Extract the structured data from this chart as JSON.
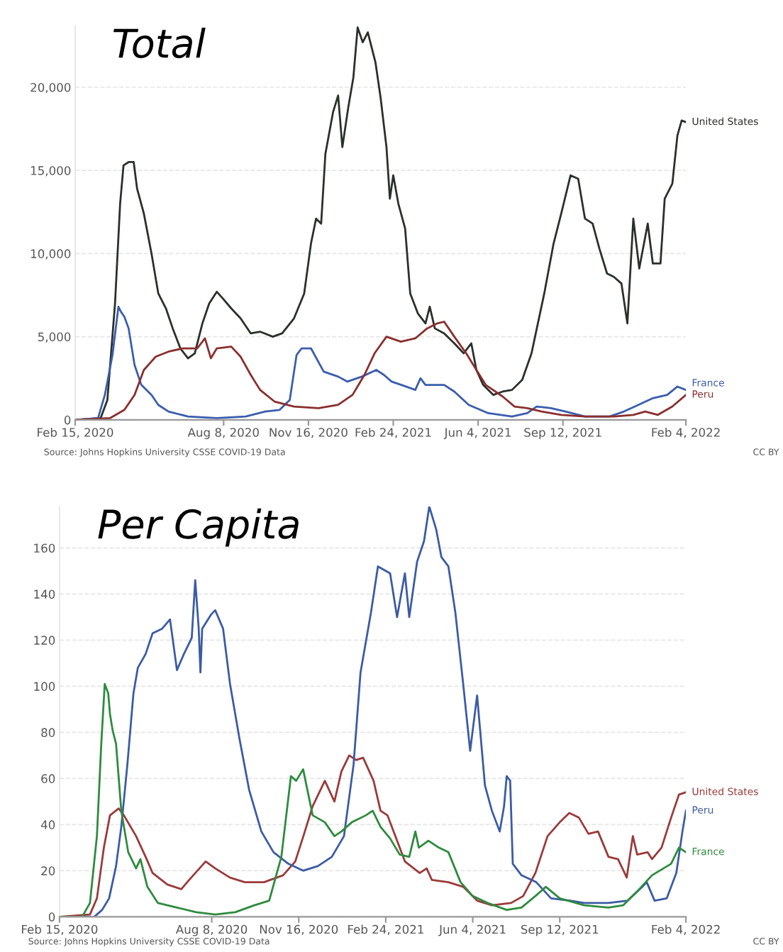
{
  "chart_data": [
    {
      "type": "line",
      "title": "Total",
      "grid": "y",
      "xlim": [
        "2020-02-15",
        "2022-02-04"
      ],
      "xticks": [
        {
          "value": "2020-02-15",
          "label": "Feb 15, 2020"
        },
        {
          "value": "2020-08-08",
          "label": "Aug 8, 2020"
        },
        {
          "value": "2020-11-16",
          "label": "Nov 16, 2020"
        },
        {
          "value": "2021-02-24",
          "label": "Feb 24, 2021"
        },
        {
          "value": "2021-06-04",
          "label": "Jun 4, 2021"
        },
        {
          "value": "2021-09-12",
          "label": "Sep 12, 2021"
        },
        {
          "value": "2022-02-04",
          "label": "Feb 4, 2022"
        }
      ],
      "ylim": [
        0,
        23700
      ],
      "yticks": [
        0,
        {
          "value": 5000,
          "label": "5,000"
        },
        {
          "value": 10000,
          "label": "10,000"
        },
        {
          "value": 15000,
          "label": "15,000"
        },
        {
          "value": 20000,
          "label": "20,000"
        }
      ],
      "annotations": [
        "Source: Johns Hopkins University CSSE COVID-19 Data",
        "CC BY"
      ],
      "series": [
        {
          "name": "United States",
          "color": "#2a302a",
          "x": [
            "2020-02-15",
            "2020-03-16",
            "2020-03-24",
            "2020-04-02",
            "2020-04-08",
            "2020-04-12",
            "2020-04-18",
            "2020-04-24",
            "2020-04-28",
            "2020-05-06",
            "2020-05-15",
            "2020-05-23",
            "2020-06-01",
            "2020-06-09",
            "2020-06-18",
            "2020-06-27",
            "2020-07-05",
            "2020-07-14",
            "2020-07-22",
            "2020-07-31",
            "2020-08-07",
            "2020-08-17",
            "2020-08-28",
            "2020-09-09",
            "2020-09-20",
            "2020-10-05",
            "2020-10-16",
            "2020-10-30",
            "2020-11-11",
            "2020-11-19",
            "2020-11-25",
            "2020-12-01",
            "2020-12-06",
            "2020-12-15",
            "2020-12-21",
            "2020-12-26",
            "2021-01-02",
            "2021-01-08",
            "2021-01-13",
            "2021-01-19",
            "2021-01-25",
            "2021-02-03",
            "2021-02-09",
            "2021-02-16",
            "2021-02-20",
            "2021-02-24",
            "2021-03-02",
            "2021-03-10",
            "2021-03-16",
            "2021-03-25",
            "2021-04-03",
            "2021-04-08",
            "2021-04-14",
            "2021-04-25",
            "2021-05-07",
            "2021-05-18",
            "2021-05-27",
            "2021-06-02",
            "2021-06-10",
            "2021-06-22",
            "2021-07-03",
            "2021-07-14",
            "2021-07-26",
            "2021-08-06",
            "2021-08-21",
            "2021-09-01",
            "2021-09-10",
            "2021-09-21",
            "2021-09-30",
            "2021-10-08",
            "2021-10-17",
            "2021-10-25",
            "2021-11-03",
            "2021-11-11",
            "2021-11-20",
            "2021-11-27",
            "2021-12-04",
            "2021-12-11",
            "2021-12-21",
            "2021-12-27",
            "2022-01-05",
            "2022-01-10",
            "2022-01-19",
            "2022-01-25",
            "2022-01-30",
            "2022-02-04"
          ],
          "values": [
            0,
            100,
            1200,
            7000,
            13000,
            15300,
            15500,
            15500,
            13900,
            12400,
            10000,
            7600,
            6700,
            5500,
            4300,
            3700,
            4000,
            5800,
            7000,
            7700,
            7300,
            6700,
            6100,
            5200,
            5300,
            5000,
            5200,
            6100,
            7600,
            10600,
            12100,
            11800,
            16000,
            18500,
            19500,
            16400,
            18800,
            20600,
            23600,
            22700,
            23300,
            21500,
            19400,
            16400,
            13300,
            14700,
            13000,
            11500,
            7600,
            6400,
            5800,
            6800,
            5500,
            5200,
            4600,
            4000,
            4600,
            3000,
            2100,
            1500,
            1700,
            1800,
            2400,
            4000,
            7600,
            10600,
            12400,
            14700,
            14500,
            12100,
            11800,
            10300,
            8800,
            8600,
            8200,
            5800,
            12100,
            9100,
            11800,
            9400,
            9400,
            13300,
            14200,
            17100,
            18000,
            17900
          ]
        },
        {
          "name": "France",
          "color": "#3a5dae",
          "x": [
            "2020-02-15",
            "2020-03-13",
            "2020-03-21",
            "2020-03-30",
            "2020-04-06",
            "2020-04-09",
            "2020-04-13",
            "2020-04-18",
            "2020-04-25",
            "2020-05-03",
            "2020-05-15",
            "2020-05-23",
            "2020-06-04",
            "2020-06-27",
            "2020-07-31",
            "2020-09-03",
            "2020-09-26",
            "2020-10-13",
            "2020-10-25",
            "2020-11-02",
            "2020-11-08",
            "2020-11-19",
            "2020-12-04",
            "2020-12-21",
            "2021-01-01",
            "2021-01-18",
            "2021-02-04",
            "2021-02-13",
            "2021-02-22",
            "2021-03-11",
            "2021-03-22",
            "2021-03-28",
            "2021-04-03",
            "2021-04-14",
            "2021-04-25",
            "2021-05-07",
            "2021-05-24",
            "2021-06-16",
            "2021-07-14",
            "2021-08-01",
            "2021-08-12",
            "2021-08-29",
            "2021-09-15",
            "2021-10-08",
            "2021-11-06",
            "2021-11-23",
            "2021-12-10",
            "2021-12-27",
            "2022-01-13",
            "2022-01-25",
            "2022-02-04"
          ],
          "values": [
            0,
            100,
            1500,
            3900,
            6800,
            6500,
            6200,
            5500,
            3300,
            2100,
            1500,
            900,
            500,
            200,
            100,
            200,
            500,
            600,
            1200,
            3900,
            4300,
            4300,
            2900,
            2600,
            2300,
            2600,
            3000,
            2700,
            2300,
            2000,
            1800,
            2500,
            2100,
            2100,
            2100,
            1700,
            900,
            400,
            200,
            400,
            800,
            700,
            500,
            200,
            200,
            500,
            900,
            1300,
            1500,
            2000,
            1800
          ]
        },
        {
          "name": "Peru",
          "color": "#8b2e2e",
          "x": [
            "2020-02-15",
            "2020-03-27",
            "2020-04-13",
            "2020-04-25",
            "2020-05-06",
            "2020-05-20",
            "2020-06-04",
            "2020-06-21",
            "2020-07-08",
            "2020-07-17",
            "2020-07-24",
            "2020-07-31",
            "2020-08-17",
            "2020-08-28",
            "2020-09-09",
            "2020-09-20",
            "2020-10-07",
            "2020-10-30",
            "2020-11-28",
            "2020-12-21",
            "2021-01-07",
            "2021-01-21",
            "2021-02-02",
            "2021-02-16",
            "2021-03-05",
            "2021-03-22",
            "2021-04-05",
            "2021-04-17",
            "2021-04-25",
            "2021-05-07",
            "2021-05-21",
            "2021-06-02",
            "2021-06-13",
            "2021-07-03",
            "2021-07-17",
            "2021-08-01",
            "2021-08-18",
            "2021-09-10",
            "2021-10-08",
            "2021-11-11",
            "2021-12-04",
            "2021-12-18",
            "2022-01-02",
            "2022-01-19",
            "2022-02-04"
          ],
          "values": [
            0,
            100,
            600,
            1500,
            3000,
            3800,
            4100,
            4300,
            4300,
            4900,
            3700,
            4300,
            4400,
            3800,
            2700,
            1800,
            1100,
            800,
            700,
            900,
            1500,
            2700,
            4000,
            5000,
            4700,
            4900,
            5500,
            5800,
            5900,
            5000,
            4000,
            3000,
            2100,
            1400,
            800,
            700,
            500,
            300,
            200,
            200,
            300,
            500,
            300,
            800,
            1500
          ]
        }
      ]
    },
    {
      "type": "line",
      "title": "Per Capita",
      "grid": "y",
      "xlim": [
        "2020-02-15",
        "2022-02-04"
      ],
      "xticks": [
        {
          "value": "2020-02-15",
          "label": "Feb 15, 2020"
        },
        {
          "value": "2020-08-08",
          "label": "Aug 8, 2020"
        },
        {
          "value": "2020-11-16",
          "label": "Nov 16, 2020"
        },
        {
          "value": "2021-02-24",
          "label": "Feb 24, 2021"
        },
        {
          "value": "2021-06-04",
          "label": "Jun 4, 2021"
        },
        {
          "value": "2021-09-12",
          "label": "Sep 12, 2021"
        },
        {
          "value": "2022-02-04",
          "label": "Feb 4, 2022"
        }
      ],
      "ylim": [
        0,
        178
      ],
      "yticks": [
        0,
        20,
        40,
        60,
        80,
        100,
        120,
        140,
        160
      ],
      "annotations": [
        "Source: Johns Hopkins University CSSE COVID-19 Data",
        "CC BY"
      ],
      "series": [
        {
          "name": "United States",
          "color": "#9b3a3a",
          "x": [
            "2020-02-15",
            "2020-03-21",
            "2020-03-29",
            "2020-04-06",
            "2020-04-13",
            "2020-04-23",
            "2020-04-29",
            "2020-05-13",
            "2020-05-24",
            "2020-06-01",
            "2020-06-18",
            "2020-07-04",
            "2020-07-13",
            "2020-08-01",
            "2020-08-12",
            "2020-08-29",
            "2020-09-15",
            "2020-10-07",
            "2020-10-29",
            "2020-11-12",
            "2020-11-23",
            "2020-12-02",
            "2020-12-16",
            "2020-12-27",
            "2021-01-04",
            "2021-01-13",
            "2021-01-21",
            "2021-01-29",
            "2021-02-10",
            "2021-02-18",
            "2021-02-26",
            "2021-03-07",
            "2021-03-18",
            "2021-04-04",
            "2021-04-12",
            "2021-04-18",
            "2021-05-07",
            "2021-05-24",
            "2021-06-09",
            "2021-06-26",
            "2021-07-18",
            "2021-08-01",
            "2021-08-15",
            "2021-08-29",
            "2021-09-12",
            "2021-09-23",
            "2021-10-04",
            "2021-10-15",
            "2021-10-26",
            "2021-11-07",
            "2021-11-18",
            "2021-11-28",
            "2021-12-05",
            "2021-12-10",
            "2021-12-22",
            "2021-12-27",
            "2022-01-07",
            "2022-01-18",
            "2022-01-27",
            "2022-02-04"
          ],
          "values": [
            0,
            1,
            8,
            30,
            44,
            47,
            44,
            35,
            26,
            19,
            14,
            12,
            16,
            24,
            21,
            17,
            15,
            15,
            18,
            24,
            37,
            48,
            59,
            50,
            63,
            70,
            68,
            69,
            59,
            46,
            44,
            35,
            24,
            19,
            21,
            16,
            15,
            13,
            7,
            5,
            6,
            9,
            19,
            35,
            41,
            45,
            43,
            36,
            37,
            26,
            25,
            17,
            35,
            27,
            28,
            25,
            30,
            43,
            53,
            54
          ]
        },
        {
          "name": "Peru",
          "color": "#3b5ba5",
          "x": [
            "2020-02-15",
            "2020-03-26",
            "2020-04-04",
            "2020-04-12",
            "2020-04-20",
            "2020-04-26",
            "2020-05-03",
            "2020-05-10",
            "2020-05-15",
            "2020-05-24",
            "2020-06-01",
            "2020-06-12",
            "2020-06-21",
            "2020-06-29",
            "2020-07-07",
            "2020-07-16",
            "2020-07-20",
            "2020-07-24",
            "2020-07-26",
            "2020-07-28",
            "2020-08-07",
            "2020-08-12",
            "2020-08-21",
            "2020-08-29",
            "2020-09-09",
            "2020-09-20",
            "2020-10-04",
            "2020-10-18",
            "2020-11-04",
            "2020-11-21",
            "2020-12-08",
            "2020-12-24",
            "2021-01-07",
            "2021-01-18",
            "2021-01-26",
            "2021-02-07",
            "2021-02-15",
            "2021-03-01",
            "2021-03-09",
            "2021-03-18",
            "2021-03-23",
            "2021-04-01",
            "2021-04-09",
            "2021-04-15",
            "2021-04-23",
            "2021-04-29",
            "2021-05-07",
            "2021-05-15",
            "2021-05-24",
            "2021-06-01",
            "2021-06-09",
            "2021-06-18",
            "2021-06-26",
            "2021-07-05",
            "2021-07-10",
            "2021-07-13",
            "2021-07-17",
            "2021-07-20",
            "2021-07-30",
            "2021-08-16",
            "2021-09-02",
            "2021-09-24",
            "2021-10-10",
            "2021-11-07",
            "2021-11-29",
            "2021-12-16",
            "2021-12-21",
            "2021-12-30",
            "2022-01-13",
            "2022-01-24",
            "2022-01-31",
            "2022-02-04"
          ],
          "values": [
            0,
            0,
            3,
            8,
            22,
            39,
            66,
            97,
            108,
            114,
            123,
            125,
            129,
            107,
            114,
            121,
            146,
            125,
            106,
            125,
            131,
            133,
            125,
            101,
            77,
            55,
            37,
            28,
            23,
            20,
            22,
            26,
            35,
            66,
            106,
            132,
            152,
            149,
            130,
            149,
            130,
            154,
            163,
            178,
            168,
            156,
            152,
            132,
            101,
            72,
            96,
            57,
            46,
            37,
            48,
            61,
            59,
            23,
            18,
            15,
            8,
            7,
            6,
            6,
            7,
            13,
            15,
            7,
            8,
            19,
            37,
            46
          ]
        },
        {
          "name": "France",
          "color": "#2e8b3e",
          "x": [
            "2020-02-15",
            "2020-03-12",
            "2020-03-21",
            "2020-03-29",
            "2020-04-03",
            "2020-04-07",
            "2020-04-11",
            "2020-04-13",
            "2020-04-16",
            "2020-04-20",
            "2020-04-26",
            "2020-05-04",
            "2020-05-13",
            "2020-05-18",
            "2020-05-26",
            "2020-06-07",
            "2020-06-29",
            "2020-07-21",
            "2020-08-12",
            "2020-09-04",
            "2020-09-26",
            "2020-10-13",
            "2020-10-27",
            "2020-11-07",
            "2020-11-13",
            "2020-11-21",
            "2020-12-02",
            "2020-12-16",
            "2020-12-27",
            "2021-01-04",
            "2021-01-16",
            "2021-02-01",
            "2021-02-09",
            "2021-02-18",
            "2021-03-01",
            "2021-03-12",
            "2021-03-23",
            "2021-03-30",
            "2021-04-03",
            "2021-04-14",
            "2021-04-26",
            "2021-05-07",
            "2021-05-21",
            "2021-06-04",
            "2021-06-21",
            "2021-07-13",
            "2021-07-30",
            "2021-08-15",
            "2021-08-27",
            "2021-09-12",
            "2021-10-10",
            "2021-11-07",
            "2021-11-24",
            "2021-12-10",
            "2021-12-27",
            "2022-01-18",
            "2022-01-27",
            "2022-02-04"
          ],
          "values": [
            0,
            0,
            6,
            35,
            75,
            101,
            97,
            88,
            81,
            75,
            46,
            28,
            21,
            25,
            13,
            6,
            4,
            2,
            1,
            2,
            5,
            7,
            26,
            61,
            59,
            64,
            44,
            41,
            35,
            37,
            41,
            44,
            46,
            39,
            34,
            27,
            26,
            37,
            30,
            33,
            30,
            28,
            15,
            9,
            6,
            3,
            4,
            9,
            13,
            8,
            5,
            4,
            5,
            11,
            18,
            23,
            30,
            28
          ]
        }
      ]
    }
  ]
}
